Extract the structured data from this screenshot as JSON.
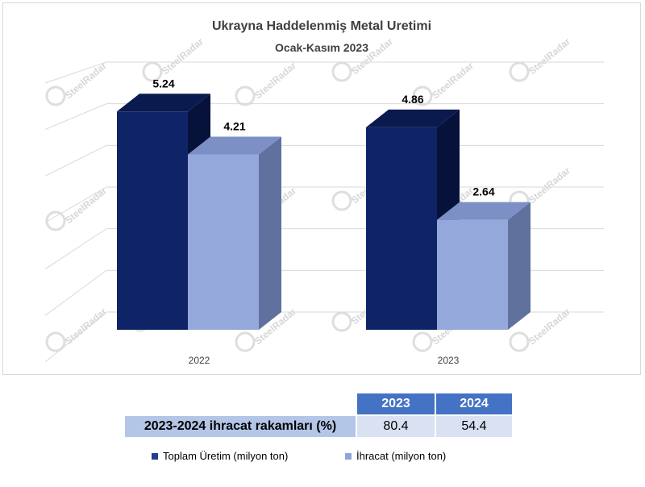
{
  "chart_data": {
    "type": "bar",
    "title": "Ukrayna Haddelenmiş Metal Uretimi",
    "subtitle": "Ocak-Kasım 2023",
    "categories": [
      "2022",
      "2023"
    ],
    "series": [
      {
        "name": "Toplam Üretim (milyon ton)",
        "values": [
          5.24,
          4.86
        ]
      },
      {
        "name": "İhracat (milyon ton)",
        "values": [
          4.21,
          2.64
        ]
      }
    ],
    "value_labels": [
      [
        "5.24",
        "4.21"
      ],
      [
        "4.86",
        "2.64"
      ]
    ],
    "ylim": [
      0,
      6
    ],
    "grid": true,
    "legend_position": "bottom"
  },
  "colors": {
    "series1_front": "#0f2466",
    "series1_top": "#0a1a4f",
    "series1_side": "#06123a",
    "series2_front": "#95a8db",
    "series2_top": "#7d90c6",
    "series2_side": "#60719e",
    "table_header": "#4472c4",
    "table_label": "#b4c6e7",
    "table_value": "#d9e1f2"
  },
  "watermark": "SteelRadar",
  "table": {
    "headers": [
      "2023",
      "2024"
    ],
    "row_label": "2023-2024 ihracat rakamları (%)",
    "values": [
      "80.4",
      "54.4"
    ]
  },
  "legend": {
    "items": [
      "Toplam Üretim (milyon ton)",
      "İhracat (milyon ton)"
    ]
  }
}
